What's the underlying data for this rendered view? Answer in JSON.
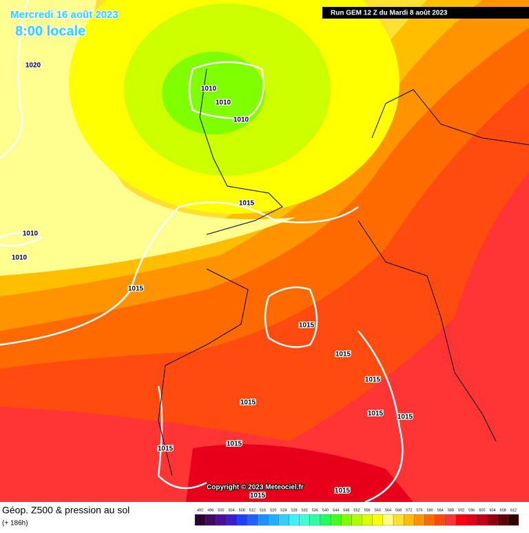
{
  "header": {
    "date": "Mercredi 16 août 2023",
    "time": "8:00 locale",
    "run": "Run GEM 12 Z du Mardi 8 août 2023"
  },
  "isobar_labels": [
    "1020",
    "1010",
    "1010",
    "1010",
    "1015",
    "1010",
    "1010",
    "1015",
    "1015",
    "1015",
    "1015",
    "1015",
    "1015",
    "1015",
    "1015",
    "1015",
    "1015",
    "1015"
  ],
  "copyright": "Copyright © 2023 Meteociel.fr",
  "footer": {
    "title": "Géop. Z500 & pression au sol",
    "lead": "(+ 186h)"
  },
  "legend": {
    "ticks": [
      492,
      496,
      500,
      504,
      508,
      512,
      516,
      520,
      524,
      528,
      532,
      536,
      540,
      544,
      548,
      552,
      556,
      560,
      564,
      568,
      572,
      576,
      580,
      584,
      588,
      592,
      596,
      600,
      604,
      608,
      612
    ]
  }
}
